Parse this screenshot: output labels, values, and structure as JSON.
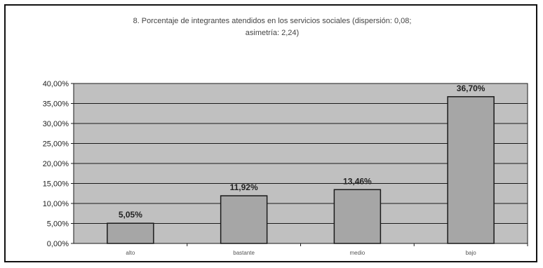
{
  "chart_data": {
    "type": "bar",
    "title": "8. Porcentaje de integrantes atendidos en los servicios sociales (dispersión: 0,08; asimetría: 2,24)",
    "title_lines": [
      "8. Porcentaje de integrantes atendidos en los servicios sociales (dispersión: 0,08;",
      "asimetría: 2,24)"
    ],
    "categories": [
      "alto",
      "bastante",
      "medio",
      "bajo"
    ],
    "values": [
      5.05,
      11.92,
      13.46,
      36.7
    ],
    "value_labels": [
      "5,05%",
      "11,92%",
      "13,46%",
      "36,70%"
    ],
    "ylim": [
      0,
      40
    ],
    "yticks": [
      0,
      5,
      10,
      15,
      20,
      25,
      30,
      35,
      40
    ],
    "ytick_labels": [
      "0,00%",
      "5,00%",
      "10,00%",
      "15,00%",
      "20,00%",
      "25,00%",
      "30,00%",
      "35,00%",
      "40,00%"
    ],
    "xlabel": "",
    "ylabel": "",
    "grid": true,
    "legend": "none",
    "colors": {
      "plot_background": "#c0c0c0",
      "bar_fill": "#a6a6a6",
      "bar_stroke": "#1a1a1a",
      "gridline": "#1a1a1a"
    }
  }
}
